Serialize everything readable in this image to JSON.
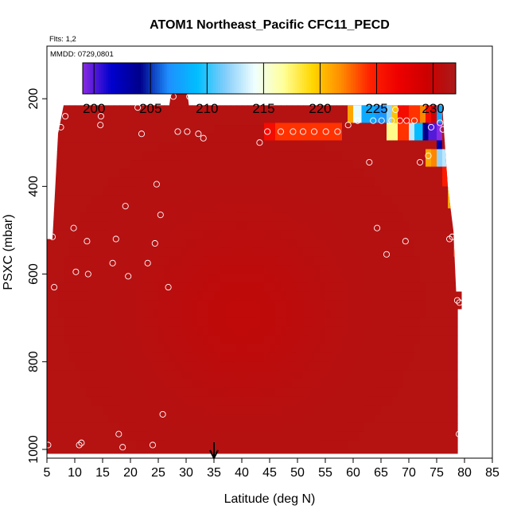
{
  "chart_data": {
    "type": "heatmap",
    "title": "ATOM1 Northeast_Pacific CFC11_PECD",
    "flights_label": "Flts: 1,2",
    "dates_label": "MMDD: 0729,0801",
    "xlabel": "Latitude (deg N)",
    "ylabel": "PSXC (mbar)",
    "xlim": [
      5,
      85
    ],
    "ylim": [
      1020,
      80
    ],
    "x_ticks": [
      5,
      10,
      15,
      20,
      25,
      30,
      35,
      40,
      45,
      50,
      55,
      60,
      65,
      70,
      75,
      80,
      85
    ],
    "y_ticks": [
      200,
      400,
      600,
      800,
      1000
    ],
    "colorbar": {
      "min": 199,
      "max": 232,
      "ticks": [
        200,
        205,
        210,
        215,
        220,
        225,
        230
      ],
      "colors": [
        "#8a2be2",
        "#0000cd",
        "#00008b",
        "#1e90ff",
        "#00bfff",
        "#87cefa",
        "#f0ffff",
        "#ffff99",
        "#ffd700",
        "#ff8c00",
        "#ff2200",
        "#ee0000",
        "#cc0000",
        "#aa1a1a"
      ]
    },
    "arrow_latitude": 35,
    "field_value_typical": 230,
    "upper_boundary": [
      {
        "lat": 6,
        "p": 520
      },
      {
        "lat": 7,
        "p": 280
      },
      {
        "lat": 8,
        "p": 215
      },
      {
        "lat": 27,
        "p": 215
      },
      {
        "lat": 27.5,
        "p": 165
      },
      {
        "lat": 30,
        "p": 165
      },
      {
        "lat": 30.5,
        "p": 215
      },
      {
        "lat": 58,
        "p": 215
      },
      {
        "lat": 76,
        "p": 215
      },
      {
        "lat": 77,
        "p": 400
      },
      {
        "lat": 78,
        "p": 500
      },
      {
        "lat": 78.5,
        "p": 640
      },
      {
        "lat": 79.5,
        "p": 640
      }
    ],
    "anomalies": [
      {
        "lat_min": 59,
        "lat_max": 60,
        "p_min": 215,
        "p_max": 255,
        "value": 221
      },
      {
        "lat_min": 60,
        "lat_max": 61.5,
        "p_min": 215,
        "p_max": 255,
        "value": 214
      },
      {
        "lat_min": 61.5,
        "lat_max": 64,
        "p_min": 215,
        "p_max": 255,
        "value": 208
      },
      {
        "lat_min": 64,
        "lat_max": 66,
        "p_min": 215,
        "p_max": 255,
        "value": 207
      },
      {
        "lat_min": 66,
        "lat_max": 67,
        "p_min": 215,
        "p_max": 255,
        "value": 212
      },
      {
        "lat_min": 67,
        "lat_max": 68,
        "p_min": 215,
        "p_max": 255,
        "value": 220
      },
      {
        "lat_min": 68,
        "lat_max": 70,
        "p_min": 215,
        "p_max": 255,
        "value": 226
      },
      {
        "lat_min": 70,
        "lat_max": 72,
        "p_min": 215,
        "p_max": 255,
        "value": 224
      },
      {
        "lat_min": 72,
        "lat_max": 73,
        "p_min": 215,
        "p_max": 255,
        "value": 222
      },
      {
        "lat_min": 73,
        "lat_max": 74,
        "p_min": 215,
        "p_max": 255,
        "value": 226
      },
      {
        "lat_min": 74,
        "lat_max": 75,
        "p_min": 215,
        "p_max": 255,
        "value": 229
      },
      {
        "lat_min": 75,
        "lat_max": 76,
        "p_min": 215,
        "p_max": 255,
        "value": 208
      },
      {
        "lat_min": 66,
        "lat_max": 68,
        "p_min": 255,
        "p_max": 295,
        "value": 217
      },
      {
        "lat_min": 68,
        "lat_max": 70,
        "p_min": 255,
        "p_max": 295,
        "value": 224
      },
      {
        "lat_min": 70,
        "lat_max": 71,
        "p_min": 255,
        "p_max": 295,
        "value": 213
      },
      {
        "lat_min": 71,
        "lat_max": 72.5,
        "p_min": 255,
        "p_max": 295,
        "value": 209
      },
      {
        "lat_min": 72.5,
        "lat_max": 73.5,
        "p_min": 255,
        "p_max": 295,
        "value": 204
      },
      {
        "lat_min": 73.5,
        "lat_max": 75,
        "p_min": 255,
        "p_max": 295,
        "value": 200
      },
      {
        "lat_min": 75,
        "lat_max": 76,
        "p_min": 255,
        "p_max": 295,
        "value": 199
      },
      {
        "lat_min": 75,
        "lat_max": 76,
        "p_min": 295,
        "p_max": 315,
        "value": 203
      },
      {
        "lat_min": 44,
        "lat_max": 46,
        "p_min": 255,
        "p_max": 295,
        "value": 226
      },
      {
        "lat_min": 46,
        "lat_max": 58,
        "p_min": 255,
        "p_max": 295,
        "value": 224
      },
      {
        "lat_min": 73,
        "lat_max": 74,
        "p_min": 315,
        "p_max": 355,
        "value": 221
      },
      {
        "lat_min": 74,
        "lat_max": 75,
        "p_min": 315,
        "p_max": 355,
        "value": 222
      },
      {
        "lat_min": 75,
        "lat_max": 76,
        "p_min": 315,
        "p_max": 355,
        "value": 212
      },
      {
        "lat_min": 76,
        "lat_max": 77,
        "p_min": 315,
        "p_max": 355,
        "value": 213
      },
      {
        "lat_min": 76,
        "lat_max": 77,
        "p_min": 355,
        "p_max": 400,
        "value": 225
      },
      {
        "lat_min": 77,
        "lat_max": 78,
        "p_min": 400,
        "p_max": 450,
        "value": 221
      },
      {
        "lat_min": 78,
        "lat_max": 78.8,
        "p_min": 500,
        "p_max": 560,
        "value": 224
      }
    ],
    "observations": [
      {
        "lat": 5.2,
        "p": 990
      },
      {
        "lat": 6.0,
        "p": 515
      },
      {
        "lat": 6.3,
        "p": 630
      },
      {
        "lat": 7.5,
        "p": 265
      },
      {
        "lat": 8.3,
        "p": 240
      },
      {
        "lat": 9.8,
        "p": 495
      },
      {
        "lat": 10.2,
        "p": 595
      },
      {
        "lat": 10.8,
        "p": 990
      },
      {
        "lat": 11.2,
        "p": 985
      },
      {
        "lat": 12.2,
        "p": 525
      },
      {
        "lat": 12.4,
        "p": 600
      },
      {
        "lat": 14.6,
        "p": 260
      },
      {
        "lat": 14.7,
        "p": 240
      },
      {
        "lat": 16.8,
        "p": 575
      },
      {
        "lat": 17.4,
        "p": 520
      },
      {
        "lat": 17.9,
        "p": 965
      },
      {
        "lat": 18.6,
        "p": 995
      },
      {
        "lat": 19.1,
        "p": 445
      },
      {
        "lat": 19.6,
        "p": 605
      },
      {
        "lat": 21.3,
        "p": 220
      },
      {
        "lat": 22.0,
        "p": 280
      },
      {
        "lat": 23.1,
        "p": 575
      },
      {
        "lat": 24.0,
        "p": 990
      },
      {
        "lat": 24.4,
        "p": 530
      },
      {
        "lat": 24.7,
        "p": 395
      },
      {
        "lat": 25.4,
        "p": 465
      },
      {
        "lat": 25.8,
        "p": 920
      },
      {
        "lat": 26.8,
        "p": 630
      },
      {
        "lat": 27.7,
        "p": 195
      },
      {
        "lat": 28.5,
        "p": 275
      },
      {
        "lat": 30.2,
        "p": 275
      },
      {
        "lat": 30.6,
        "p": 195
      },
      {
        "lat": 32.2,
        "p": 280
      },
      {
        "lat": 33.1,
        "p": 290
      },
      {
        "lat": 43.2,
        "p": 300
      },
      {
        "lat": 44.6,
        "p": 275
      },
      {
        "lat": 47.0,
        "p": 275
      },
      {
        "lat": 49.2,
        "p": 275
      },
      {
        "lat": 51.0,
        "p": 275
      },
      {
        "lat": 53.0,
        "p": 275
      },
      {
        "lat": 55.1,
        "p": 275
      },
      {
        "lat": 57.2,
        "p": 275
      },
      {
        "lat": 59.1,
        "p": 260
      },
      {
        "lat": 60.8,
        "p": 250
      },
      {
        "lat": 62.9,
        "p": 345
      },
      {
        "lat": 63.6,
        "p": 250
      },
      {
        "lat": 64.3,
        "p": 495
      },
      {
        "lat": 65.1,
        "p": 250
      },
      {
        "lat": 66.0,
        "p": 555
      },
      {
        "lat": 66.9,
        "p": 250
      },
      {
        "lat": 67.6,
        "p": 225
      },
      {
        "lat": 68.4,
        "p": 250
      },
      {
        "lat": 69.4,
        "p": 525
      },
      {
        "lat": 69.6,
        "p": 250
      },
      {
        "lat": 71.0,
        "p": 250
      },
      {
        "lat": 72.0,
        "p": 345
      },
      {
        "lat": 73.5,
        "p": 330
      },
      {
        "lat": 74.0,
        "p": 265
      },
      {
        "lat": 75.6,
        "p": 255
      },
      {
        "lat": 76.1,
        "p": 270
      },
      {
        "lat": 77.3,
        "p": 520
      },
      {
        "lat": 77.8,
        "p": 515
      },
      {
        "lat": 78.7,
        "p": 660
      },
      {
        "lat": 79.0,
        "p": 965
      },
      {
        "lat": 79.1,
        "p": 665
      }
    ]
  }
}
